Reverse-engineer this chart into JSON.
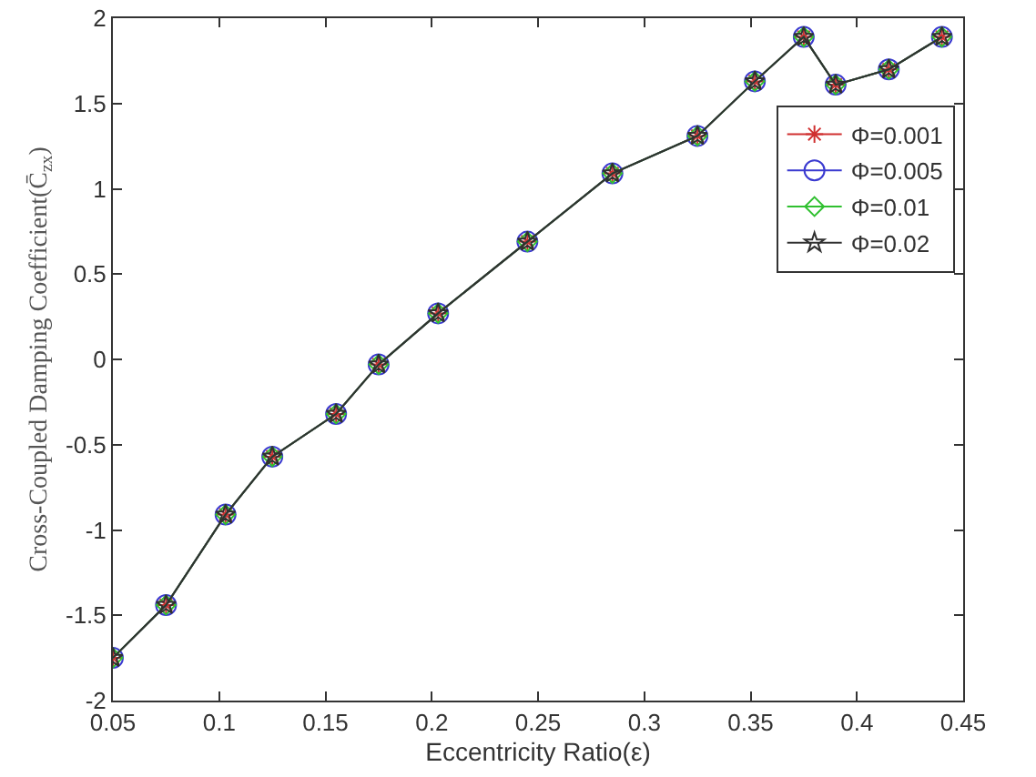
{
  "chart_data": {
    "type": "line",
    "xlabel": "Eccentricity Ratio(ε)",
    "ylabel": "Cross-Coupled Damping Coefficient(C̄$_{zx}$)",
    "x": [
      0.05,
      0.075,
      0.103,
      0.125,
      0.155,
      0.175,
      0.203,
      0.245,
      0.285,
      0.325,
      0.352,
      0.375,
      0.39,
      0.415,
      0.44
    ],
    "series": [
      {
        "name": "Φ=0.001",
        "color": "#d03030",
        "marker": "cross",
        "values": [
          -1.75,
          -1.44,
          -0.91,
          -0.57,
          -0.32,
          -0.03,
          0.27,
          0.69,
          1.09,
          1.31,
          1.63,
          1.89,
          1.61,
          1.7,
          1.89
        ]
      },
      {
        "name": "Φ=0.005",
        "color": "#3a3ad0",
        "marker": "circle",
        "values": [
          -1.75,
          -1.44,
          -0.91,
          -0.57,
          -0.32,
          -0.03,
          0.27,
          0.69,
          1.09,
          1.31,
          1.63,
          1.89,
          1.61,
          1.7,
          1.89
        ]
      },
      {
        "name": "Φ=0.01",
        "color": "#30c030",
        "marker": "diamond",
        "values": [
          -1.75,
          -1.44,
          -0.91,
          -0.57,
          -0.32,
          -0.03,
          0.27,
          0.69,
          1.09,
          1.31,
          1.63,
          1.89,
          1.61,
          1.7,
          1.89
        ]
      },
      {
        "name": "Φ=0.02",
        "color": "#303030",
        "marker": "star",
        "values": [
          -1.75,
          -1.44,
          -0.91,
          -0.57,
          -0.32,
          -0.03,
          0.27,
          0.69,
          1.09,
          1.31,
          1.63,
          1.89,
          1.61,
          1.7,
          1.89
        ]
      }
    ],
    "xlim": [
      0.05,
      0.45
    ],
    "xticks": [
      0.05,
      0.1,
      0.15,
      0.2,
      0.25,
      0.3,
      0.35,
      0.4,
      0.45
    ],
    "ylim": [
      -2,
      2
    ],
    "yticks": [
      -2,
      -1.5,
      -1,
      -0.5,
      0,
      0.5,
      1,
      1.5,
      2
    ],
    "grid": false,
    "legend": "right",
    "line_style": "solid"
  }
}
